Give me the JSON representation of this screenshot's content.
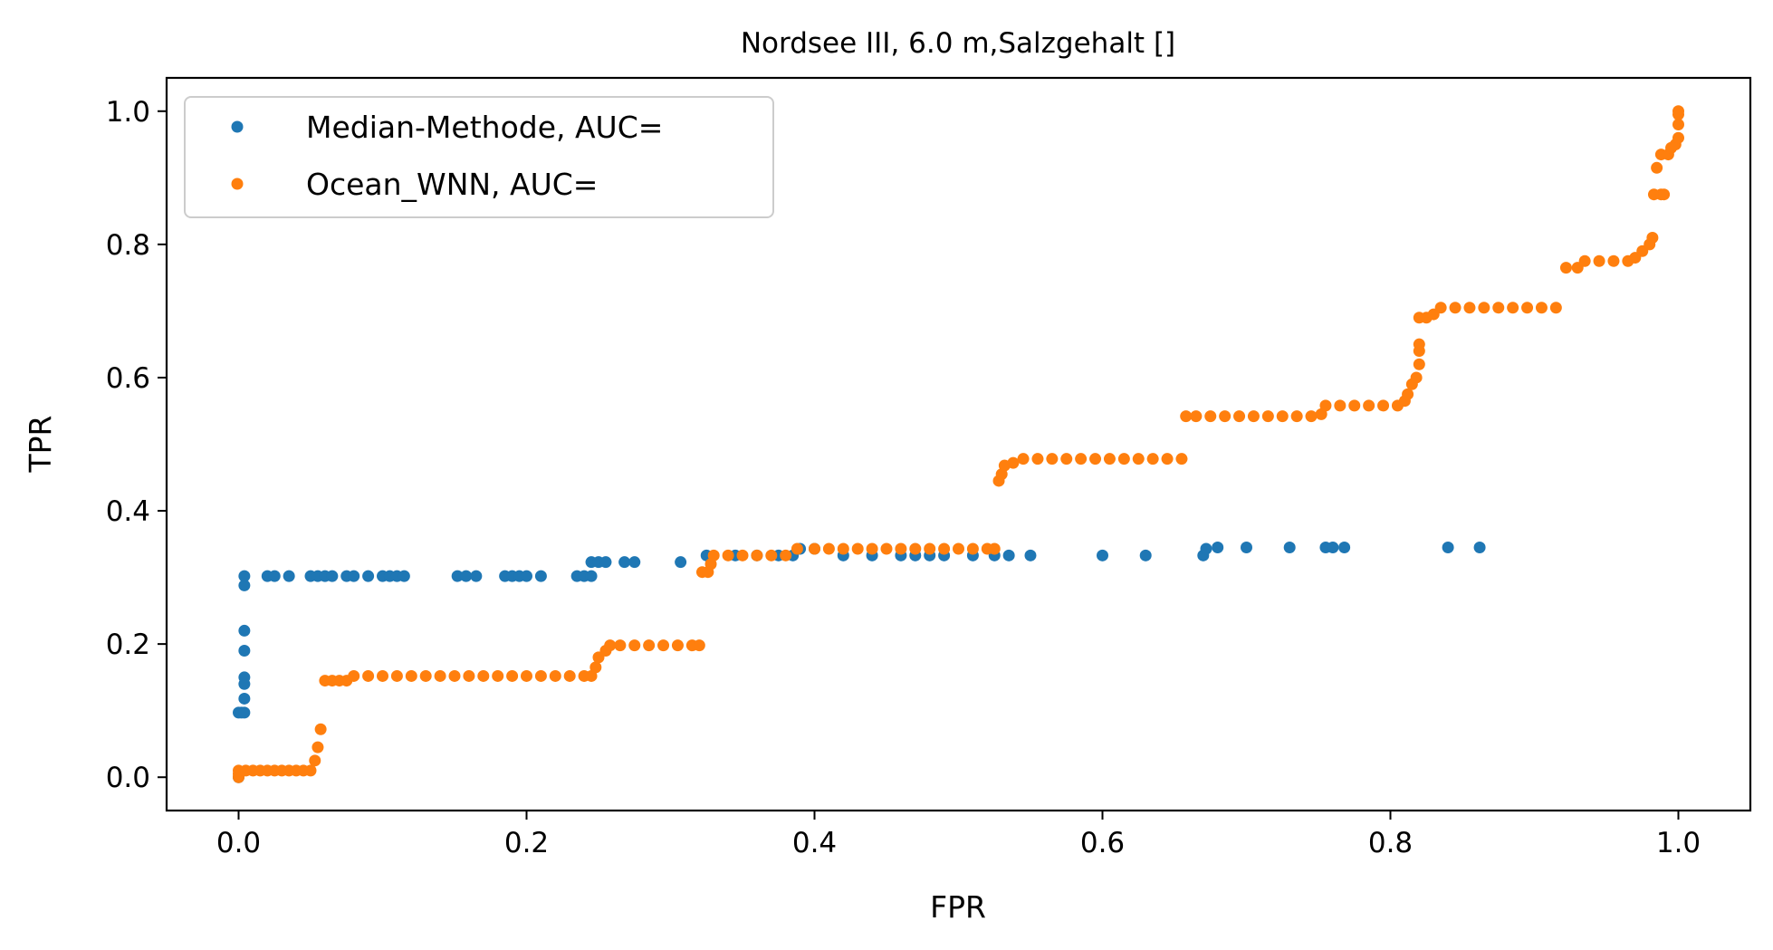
{
  "chart_data": {
    "type": "scatter",
    "title": "Nordsee III, 6.0 m,Salzgehalt []",
    "xlabel": "FPR",
    "ylabel": "TPR",
    "xlim": [
      -0.05,
      1.05
    ],
    "ylim": [
      -0.05,
      1.05
    ],
    "xticks": [
      {
        "value": 0.0,
        "label": "0.0"
      },
      {
        "value": 0.2,
        "label": "0.2"
      },
      {
        "value": 0.4,
        "label": "0.4"
      },
      {
        "value": 0.6,
        "label": "0.6"
      },
      {
        "value": 0.8,
        "label": "0.8"
      },
      {
        "value": 1.0,
        "label": "1.0"
      }
    ],
    "yticks": [
      {
        "value": 0.0,
        "label": "0.0"
      },
      {
        "value": 0.2,
        "label": "0.2"
      },
      {
        "value": 0.4,
        "label": "0.4"
      },
      {
        "value": 0.6,
        "label": "0.6"
      },
      {
        "value": 0.8,
        "label": "0.8"
      },
      {
        "value": 1.0,
        "label": "1.0"
      }
    ],
    "grid": false,
    "legend_position": "top-left",
    "series": [
      {
        "name": "Median-Methode, AUC=",
        "color": "#1f77b4",
        "points": [
          [
            0.0,
            0.0
          ],
          [
            0.0,
            0.097
          ],
          [
            0.002,
            0.097
          ],
          [
            0.004,
            0.097
          ],
          [
            0.004,
            0.118
          ],
          [
            0.004,
            0.14
          ],
          [
            0.004,
            0.15
          ],
          [
            0.004,
            0.19
          ],
          [
            0.004,
            0.22
          ],
          [
            0.004,
            0.288
          ],
          [
            0.004,
            0.302
          ],
          [
            0.02,
            0.302
          ],
          [
            0.025,
            0.302
          ],
          [
            0.035,
            0.302
          ],
          [
            0.05,
            0.302
          ],
          [
            0.055,
            0.302
          ],
          [
            0.06,
            0.302
          ],
          [
            0.065,
            0.302
          ],
          [
            0.075,
            0.302
          ],
          [
            0.08,
            0.302
          ],
          [
            0.09,
            0.302
          ],
          [
            0.1,
            0.302
          ],
          [
            0.105,
            0.302
          ],
          [
            0.11,
            0.302
          ],
          [
            0.115,
            0.302
          ],
          [
            0.152,
            0.302
          ],
          [
            0.158,
            0.302
          ],
          [
            0.165,
            0.302
          ],
          [
            0.185,
            0.302
          ],
          [
            0.19,
            0.302
          ],
          [
            0.195,
            0.302
          ],
          [
            0.2,
            0.302
          ],
          [
            0.21,
            0.302
          ],
          [
            0.235,
            0.302
          ],
          [
            0.24,
            0.302
          ],
          [
            0.245,
            0.302
          ],
          [
            0.245,
            0.323
          ],
          [
            0.25,
            0.323
          ],
          [
            0.255,
            0.323
          ],
          [
            0.268,
            0.323
          ],
          [
            0.275,
            0.323
          ],
          [
            0.307,
            0.323
          ],
          [
            0.325,
            0.333
          ],
          [
            0.345,
            0.333
          ],
          [
            0.36,
            0.333
          ],
          [
            0.375,
            0.333
          ],
          [
            0.385,
            0.333
          ],
          [
            0.39,
            0.343
          ],
          [
            0.4,
            0.343
          ],
          [
            0.42,
            0.333
          ],
          [
            0.44,
            0.333
          ],
          [
            0.46,
            0.333
          ],
          [
            0.47,
            0.333
          ],
          [
            0.48,
            0.333
          ],
          [
            0.49,
            0.333
          ],
          [
            0.51,
            0.333
          ],
          [
            0.525,
            0.333
          ],
          [
            0.535,
            0.333
          ],
          [
            0.55,
            0.333
          ],
          [
            0.6,
            0.333
          ],
          [
            0.63,
            0.333
          ],
          [
            0.67,
            0.333
          ],
          [
            0.672,
            0.343
          ],
          [
            0.68,
            0.345
          ],
          [
            0.7,
            0.345
          ],
          [
            0.73,
            0.345
          ],
          [
            0.755,
            0.345
          ],
          [
            0.76,
            0.345
          ],
          [
            0.768,
            0.345
          ],
          [
            0.84,
            0.345
          ],
          [
            0.862,
            0.345
          ]
        ]
      },
      {
        "name": "Ocean_WNN, AUC=",
        "color": "#ff7f0e",
        "points": [
          [
            0.0,
            0.0
          ],
          [
            0.0,
            0.005
          ],
          [
            0.0,
            0.01
          ],
          [
            0.005,
            0.01
          ],
          [
            0.01,
            0.01
          ],
          [
            0.015,
            0.01
          ],
          [
            0.02,
            0.01
          ],
          [
            0.025,
            0.01
          ],
          [
            0.03,
            0.01
          ],
          [
            0.035,
            0.01
          ],
          [
            0.04,
            0.01
          ],
          [
            0.045,
            0.01
          ],
          [
            0.05,
            0.01
          ],
          [
            0.053,
            0.025
          ],
          [
            0.055,
            0.045
          ],
          [
            0.057,
            0.072
          ],
          [
            0.06,
            0.145
          ],
          [
            0.065,
            0.145
          ],
          [
            0.07,
            0.145
          ],
          [
            0.075,
            0.145
          ],
          [
            0.08,
            0.152
          ],
          [
            0.09,
            0.152
          ],
          [
            0.1,
            0.152
          ],
          [
            0.11,
            0.152
          ],
          [
            0.12,
            0.152
          ],
          [
            0.13,
            0.152
          ],
          [
            0.14,
            0.152
          ],
          [
            0.15,
            0.152
          ],
          [
            0.16,
            0.152
          ],
          [
            0.17,
            0.152
          ],
          [
            0.18,
            0.152
          ],
          [
            0.19,
            0.152
          ],
          [
            0.2,
            0.152
          ],
          [
            0.21,
            0.152
          ],
          [
            0.22,
            0.152
          ],
          [
            0.23,
            0.152
          ],
          [
            0.24,
            0.152
          ],
          [
            0.245,
            0.152
          ],
          [
            0.248,
            0.165
          ],
          [
            0.25,
            0.18
          ],
          [
            0.255,
            0.19
          ],
          [
            0.258,
            0.198
          ],
          [
            0.265,
            0.198
          ],
          [
            0.275,
            0.198
          ],
          [
            0.285,
            0.198
          ],
          [
            0.295,
            0.198
          ],
          [
            0.305,
            0.198
          ],
          [
            0.315,
            0.198
          ],
          [
            0.32,
            0.198
          ],
          [
            0.322,
            0.308
          ],
          [
            0.326,
            0.308
          ],
          [
            0.328,
            0.32
          ],
          [
            0.33,
            0.333
          ],
          [
            0.34,
            0.333
          ],
          [
            0.35,
            0.333
          ],
          [
            0.36,
            0.333
          ],
          [
            0.37,
            0.333
          ],
          [
            0.38,
            0.333
          ],
          [
            0.388,
            0.343
          ],
          [
            0.4,
            0.343
          ],
          [
            0.41,
            0.343
          ],
          [
            0.42,
            0.343
          ],
          [
            0.43,
            0.343
          ],
          [
            0.44,
            0.343
          ],
          [
            0.45,
            0.343
          ],
          [
            0.46,
            0.343
          ],
          [
            0.47,
            0.343
          ],
          [
            0.48,
            0.343
          ],
          [
            0.49,
            0.343
          ],
          [
            0.5,
            0.343
          ],
          [
            0.51,
            0.343
          ],
          [
            0.52,
            0.343
          ],
          [
            0.525,
            0.343
          ],
          [
            0.528,
            0.445
          ],
          [
            0.53,
            0.455
          ],
          [
            0.532,
            0.468
          ],
          [
            0.538,
            0.472
          ],
          [
            0.545,
            0.478
          ],
          [
            0.555,
            0.478
          ],
          [
            0.565,
            0.478
          ],
          [
            0.575,
            0.478
          ],
          [
            0.585,
            0.478
          ],
          [
            0.595,
            0.478
          ],
          [
            0.605,
            0.478
          ],
          [
            0.615,
            0.478
          ],
          [
            0.625,
            0.478
          ],
          [
            0.635,
            0.478
          ],
          [
            0.645,
            0.478
          ],
          [
            0.655,
            0.478
          ],
          [
            0.658,
            0.542
          ],
          [
            0.665,
            0.542
          ],
          [
            0.675,
            0.542
          ],
          [
            0.685,
            0.542
          ],
          [
            0.695,
            0.542
          ],
          [
            0.705,
            0.542
          ],
          [
            0.715,
            0.542
          ],
          [
            0.725,
            0.542
          ],
          [
            0.735,
            0.542
          ],
          [
            0.745,
            0.542
          ],
          [
            0.752,
            0.545
          ],
          [
            0.755,
            0.558
          ],
          [
            0.765,
            0.558
          ],
          [
            0.775,
            0.558
          ],
          [
            0.785,
            0.558
          ],
          [
            0.795,
            0.558
          ],
          [
            0.805,
            0.558
          ],
          [
            0.81,
            0.565
          ],
          [
            0.812,
            0.575
          ],
          [
            0.815,
            0.59
          ],
          [
            0.818,
            0.6
          ],
          [
            0.82,
            0.62
          ],
          [
            0.82,
            0.64
          ],
          [
            0.82,
            0.65
          ],
          [
            0.82,
            0.69
          ],
          [
            0.825,
            0.69
          ],
          [
            0.83,
            0.695
          ],
          [
            0.835,
            0.705
          ],
          [
            0.845,
            0.705
          ],
          [
            0.855,
            0.705
          ],
          [
            0.865,
            0.705
          ],
          [
            0.875,
            0.705
          ],
          [
            0.885,
            0.705
          ],
          [
            0.895,
            0.705
          ],
          [
            0.905,
            0.705
          ],
          [
            0.915,
            0.705
          ],
          [
            0.922,
            0.765
          ],
          [
            0.93,
            0.765
          ],
          [
            0.935,
            0.775
          ],
          [
            0.945,
            0.775
          ],
          [
            0.955,
            0.775
          ],
          [
            0.965,
            0.775
          ],
          [
            0.97,
            0.78
          ],
          [
            0.975,
            0.79
          ],
          [
            0.98,
            0.8
          ],
          [
            0.982,
            0.81
          ],
          [
            0.983,
            0.875
          ],
          [
            0.988,
            0.875
          ],
          [
            0.99,
            0.875
          ],
          [
            0.985,
            0.915
          ],
          [
            0.988,
            0.935
          ],
          [
            0.993,
            0.935
          ],
          [
            0.995,
            0.945
          ],
          [
            0.998,
            0.95
          ],
          [
            1.0,
            0.96
          ],
          [
            1.0,
            0.98
          ],
          [
            1.0,
            0.995
          ],
          [
            1.0,
            1.0
          ]
        ]
      }
    ]
  }
}
